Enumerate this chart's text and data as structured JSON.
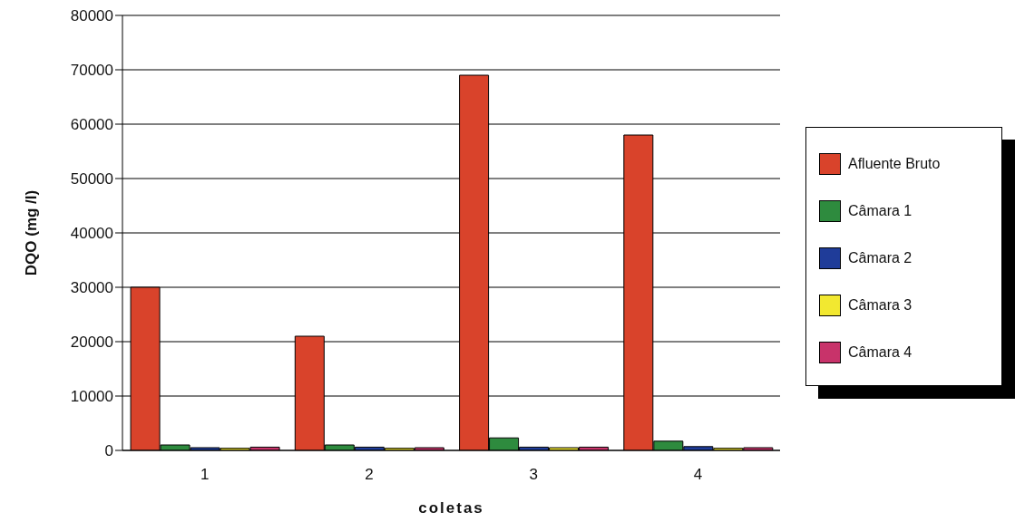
{
  "chart_data": {
    "type": "bar",
    "xlabel": "coletas",
    "ylabel": "DQO (mg /l)",
    "categories": [
      "1",
      "2",
      "3",
      "4"
    ],
    "series": [
      {
        "name": "Afluente Bruto",
        "color": "#d9432b",
        "values": [
          30000,
          21000,
          69000,
          58000
        ]
      },
      {
        "name": "Câmara 1",
        "color": "#2e8b3e",
        "values": [
          1000,
          1000,
          2300,
          1700
        ]
      },
      {
        "name": "Câmara 2",
        "color": "#1f3c99",
        "values": [
          500,
          600,
          600,
          700
        ]
      },
      {
        "name": "Câmara 3",
        "color": "#f2e830",
        "values": [
          400,
          400,
          500,
          400
        ]
      },
      {
        "name": "Câmara 4",
        "color": "#c8336a",
        "values": [
          600,
          500,
          600,
          500
        ]
      }
    ],
    "ylim": [
      0,
      80000
    ],
    "yticks": [
      0,
      10000,
      20000,
      30000,
      40000,
      50000,
      60000,
      70000,
      80000
    ],
    "grid": "y",
    "legend": "right"
  }
}
